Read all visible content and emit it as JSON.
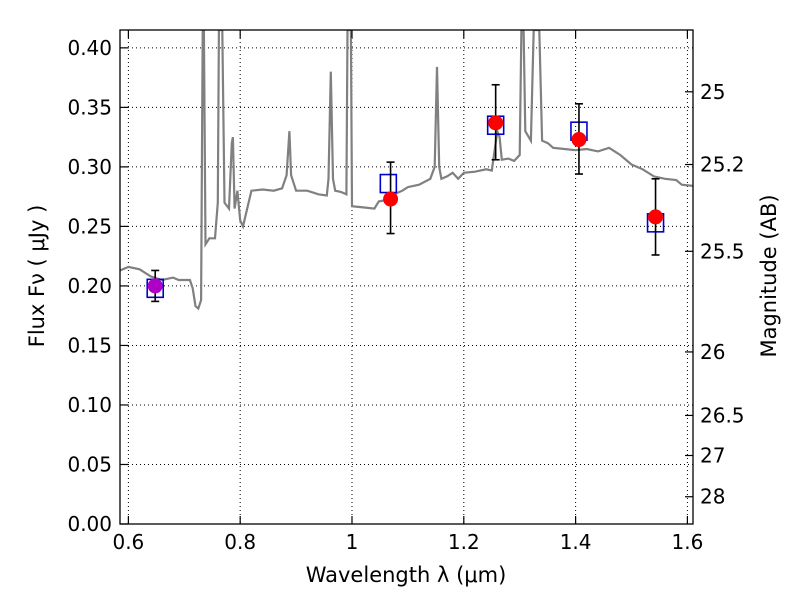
{
  "chart_data": {
    "type": "scatter",
    "title": "",
    "xlabel": "Wavelength  λ (μm)",
    "ylabel": "Flux  Fν  ( μJy )",
    "ylabel_right": "Magnitude (AB)",
    "xlim": [
      0.585,
      1.61
    ],
    "ylim": [
      0.0,
      0.415
    ],
    "grid": true,
    "x_ticks": [
      {
        "value": 0.6,
        "label": "0.6"
      },
      {
        "value": 0.8,
        "label": "0.8"
      },
      {
        "value": 1.0,
        "label": "1"
      },
      {
        "value": 1.2,
        "label": "1.2"
      },
      {
        "value": 1.4,
        "label": "1.4"
      },
      {
        "value": 1.6,
        "label": "1.6"
      }
    ],
    "y_ticks": [
      {
        "value": 0.0,
        "label": "0.00"
      },
      {
        "value": 0.05,
        "label": "0.05"
      },
      {
        "value": 0.1,
        "label": "0.10"
      },
      {
        "value": 0.15,
        "label": "0.15"
      },
      {
        "value": 0.2,
        "label": "0.20"
      },
      {
        "value": 0.25,
        "label": "0.25"
      },
      {
        "value": 0.3,
        "label": "0.30"
      },
      {
        "value": 0.35,
        "label": "0.35"
      },
      {
        "value": 0.4,
        "label": "0.40"
      }
    ],
    "mag_ticks": [
      {
        "mag": 25.0,
        "label": "25"
      },
      {
        "mag": 25.2,
        "label": "25.2"
      },
      {
        "mag": 25.5,
        "label": "25.5"
      },
      {
        "mag": 26.0,
        "label": "26"
      },
      {
        "mag": 26.5,
        "label": "26.5"
      },
      {
        "mag": 27.0,
        "label": "27"
      },
      {
        "mag": 28.0,
        "label": "28"
      }
    ],
    "observed": [
      {
        "x": 0.648,
        "y": 0.2,
        "yerr_low": 0.013,
        "yerr_high": 0.013
      },
      {
        "x": 1.069,
        "y": 0.273,
        "yerr_low": 0.029,
        "yerr_high": 0.031
      },
      {
        "x": 1.257,
        "y": 0.337,
        "yerr_low": 0.031,
        "yerr_high": 0.032
      },
      {
        "x": 1.406,
        "y": 0.323,
        "yerr_low": 0.029,
        "yerr_high": 0.03
      },
      {
        "x": 1.543,
        "y": 0.258,
        "yerr_low": 0.032,
        "yerr_high": 0.032
      }
    ],
    "model_bands": [
      {
        "x": 0.648,
        "y": 0.198
      },
      {
        "x": 1.065,
        "y": 0.286
      },
      {
        "x": 1.257,
        "y": 0.335
      },
      {
        "x": 1.406,
        "y": 0.33
      },
      {
        "x": 1.543,
        "y": 0.253
      }
    ],
    "sed_model": [
      [
        0.585,
        0.213
      ],
      [
        0.6,
        0.216
      ],
      [
        0.62,
        0.214
      ],
      [
        0.64,
        0.208
      ],
      [
        0.66,
        0.205
      ],
      [
        0.68,
        0.207
      ],
      [
        0.69,
        0.205
      ],
      [
        0.7,
        0.205
      ],
      [
        0.71,
        0.205
      ],
      [
        0.715,
        0.198
      ],
      [
        0.72,
        0.183
      ],
      [
        0.725,
        0.181
      ],
      [
        0.73,
        0.188
      ],
      [
        0.733,
        0.415
      ],
      [
        0.735,
        0.415
      ],
      [
        0.738,
        0.235
      ],
      [
        0.745,
        0.24
      ],
      [
        0.75,
        0.24
      ],
      [
        0.755,
        0.24
      ],
      [
        0.76,
        0.27
      ],
      [
        0.762,
        0.415
      ],
      [
        0.768,
        0.415
      ],
      [
        0.772,
        0.27
      ],
      [
        0.78,
        0.265
      ],
      [
        0.785,
        0.32
      ],
      [
        0.787,
        0.325
      ],
      [
        0.79,
        0.265
      ],
      [
        0.795,
        0.28
      ],
      [
        0.8,
        0.255
      ],
      [
        0.805,
        0.25
      ],
      [
        0.81,
        0.26
      ],
      [
        0.82,
        0.28
      ],
      [
        0.84,
        0.281
      ],
      [
        0.86,
        0.28
      ],
      [
        0.875,
        0.282
      ],
      [
        0.883,
        0.293
      ],
      [
        0.888,
        0.33
      ],
      [
        0.891,
        0.293
      ],
      [
        0.9,
        0.28
      ],
      [
        0.92,
        0.28
      ],
      [
        0.94,
        0.277
      ],
      [
        0.955,
        0.276
      ],
      [
        0.958,
        0.29
      ],
      [
        0.962,
        0.38
      ],
      [
        0.966,
        0.29
      ],
      [
        0.97,
        0.28
      ],
      [
        0.98,
        0.279
      ],
      [
        0.99,
        0.277
      ],
      [
        0.992,
        0.415
      ],
      [
        0.998,
        0.415
      ],
      [
        1.0,
        0.267
      ],
      [
        1.02,
        0.266
      ],
      [
        1.04,
        0.265
      ],
      [
        1.048,
        0.271
      ],
      [
        1.06,
        0.272
      ],
      [
        1.08,
        0.278
      ],
      [
        1.09,
        0.28
      ],
      [
        1.1,
        0.283
      ],
      [
        1.12,
        0.285
      ],
      [
        1.14,
        0.29
      ],
      [
        1.148,
        0.3
      ],
      [
        1.152,
        0.384
      ],
      [
        1.156,
        0.3
      ],
      [
        1.16,
        0.29
      ],
      [
        1.17,
        0.292
      ],
      [
        1.18,
        0.295
      ],
      [
        1.19,
        0.29
      ],
      [
        1.2,
        0.295
      ],
      [
        1.22,
        0.296
      ],
      [
        1.24,
        0.298
      ],
      [
        1.25,
        0.297
      ],
      [
        1.26,
        0.33
      ],
      [
        1.264,
        0.325
      ],
      [
        1.268,
        0.306
      ],
      [
        1.28,
        0.307
      ],
      [
        1.29,
        0.305
      ],
      [
        1.3,
        0.31
      ],
      [
        1.303,
        0.415
      ],
      [
        1.307,
        0.415
      ],
      [
        1.31,
        0.33
      ],
      [
        1.32,
        0.322
      ],
      [
        1.325,
        0.415
      ],
      [
        1.335,
        0.415
      ],
      [
        1.34,
        0.322
      ],
      [
        1.35,
        0.32
      ],
      [
        1.36,
        0.316
      ],
      [
        1.38,
        0.315
      ],
      [
        1.4,
        0.314
      ],
      [
        1.42,
        0.315
      ],
      [
        1.44,
        0.313
      ],
      [
        1.46,
        0.316
      ],
      [
        1.47,
        0.313
      ],
      [
        1.48,
        0.31
      ],
      [
        1.5,
        0.302
      ],
      [
        1.52,
        0.298
      ],
      [
        1.54,
        0.292
      ],
      [
        1.56,
        0.29
      ],
      [
        1.58,
        0.289
      ],
      [
        1.59,
        0.285
      ],
      [
        1.61,
        0.284
      ]
    ],
    "colors": {
      "model_line": "#808080",
      "observed_fill": "#ff0000",
      "band_box": "#0000cc",
      "errorbar": "#000000",
      "grid": "#000000"
    }
  }
}
